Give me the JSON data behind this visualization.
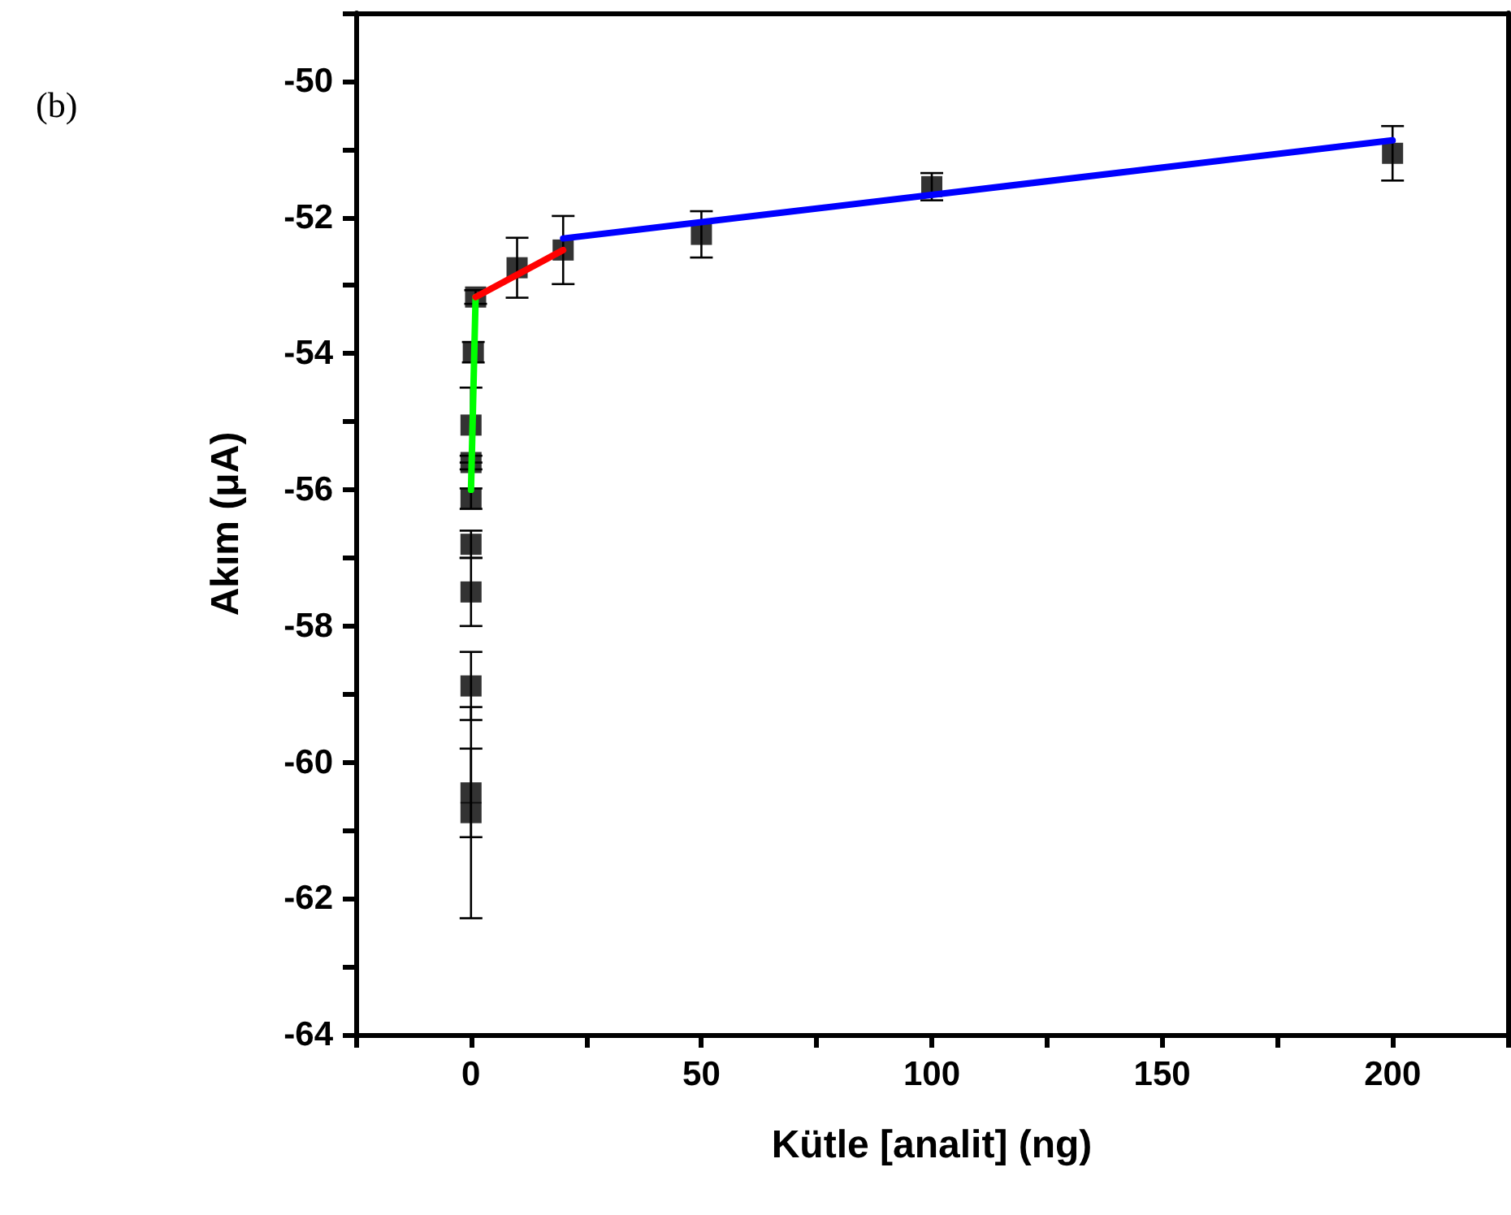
{
  "chart_data": {
    "type": "scatter",
    "xlabel": "Kütle [analit] (ng)",
    "ylabel": "Akım (μA)",
    "annotations": [
      "(b)"
    ],
    "xlim": [
      -25,
      225
    ],
    "ylim": [
      -64,
      -49
    ],
    "xticks": [
      {
        "value": -25,
        "label": null
      },
      0,
      {
        "value": 25,
        "label": null
      },
      50,
      {
        "value": 75,
        "label": null
      },
      100,
      {
        "value": 125,
        "label": null
      },
      150,
      {
        "value": 175,
        "label": null
      },
      200,
      {
        "value": 225,
        "label": null
      }
    ],
    "yticks": [
      -64,
      {
        "value": -63,
        "label": null
      },
      -62,
      {
        "value": -61,
        "label": null
      },
      -60,
      {
        "value": -59,
        "label": null
      },
      -58,
      {
        "value": -57,
        "label": null
      },
      -56,
      {
        "value": -55,
        "label": null
      },
      -54,
      {
        "value": -53,
        "label": null
      },
      -52,
      {
        "value": -51,
        "label": null
      },
      -50,
      {
        "value": -49,
        "label": null
      }
    ],
    "grid": false,
    "marker": "square",
    "series": [
      {
        "type": "line",
        "color": "#00ff00",
        "marker": "none",
        "x": [
          0,
          1
        ],
        "values": [
          -56.0,
          -53.17
        ]
      },
      {
        "type": "line",
        "color": "#ff0000",
        "marker": "none",
        "x": [
          1,
          20
        ],
        "values": [
          -53.17,
          -52.48
        ]
      },
      {
        "type": "line",
        "color": "#0000ff",
        "marker": "none",
        "x": [
          20,
          200
        ],
        "values": [
          -52.31,
          -50.87
        ]
      },
      {
        "color": "#000000",
        "x": [
          0,
          0,
          0,
          0,
          0,
          0,
          0,
          0,
          0.5,
          1,
          10,
          20,
          50,
          100,
          200
        ],
        "values": [
          -60.74,
          -60.45,
          -58.88,
          -57.5,
          -56.8,
          -56.13,
          -55.6,
          -55.05,
          -53.98,
          -53.17,
          -52.74,
          -52.48,
          -52.25,
          -51.55,
          -51.06
        ],
        "errors": [
          1.55,
          0.65,
          0.5,
          0.5,
          0.2,
          0.15,
          0.1,
          0.55,
          0.15,
          0.1,
          0.44,
          0.5,
          0.34,
          0.2,
          0.4
        ]
      }
    ]
  }
}
